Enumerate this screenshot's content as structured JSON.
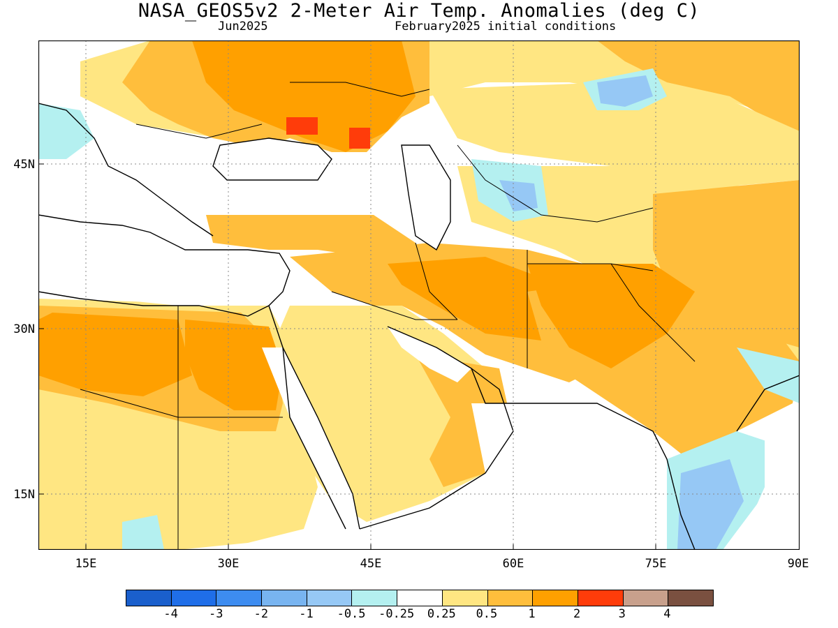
{
  "title": "NASA_GEOS5v2 2-Meter Air Temp. Anomalies (deg C)",
  "subtitle_left": "Jun2025",
  "subtitle_right": "February2025 initial conditions",
  "lat_labels": [
    "45N",
    "30N",
    "15N"
  ],
  "lon_labels": [
    "15E",
    "30E",
    "45E",
    "60E",
    "75E",
    "90E"
  ],
  "colorbar": {
    "labels": [
      "-4",
      "-3",
      "-2",
      "-1",
      "-0.5",
      "-0.25",
      "0.25",
      "0.5",
      "1",
      "2",
      "3",
      "4"
    ],
    "colors": [
      "#1a5fcc",
      "#1f6ee8",
      "#3d8cf0",
      "#78b4f0",
      "#96c8f5",
      "#b4f0f0",
      "#ffffff",
      "#ffe682",
      "#ffbe3c",
      "#ffa000",
      "#ff3c0a",
      "#c8a08c",
      "#7a5040"
    ]
  },
  "colors": {
    "ocean": "#ffffff",
    "land_neutral": "#ffffff",
    "anomaly_light": "#ffe682",
    "anomaly_mid": "#ffbe3c",
    "anomaly_high": "#ffa000",
    "anomaly_extreme": "#ff3c0a",
    "cool_light": "#b4f0f0",
    "cool_mid": "#96c8f5",
    "cool_strong": "#78b4f0"
  }
}
